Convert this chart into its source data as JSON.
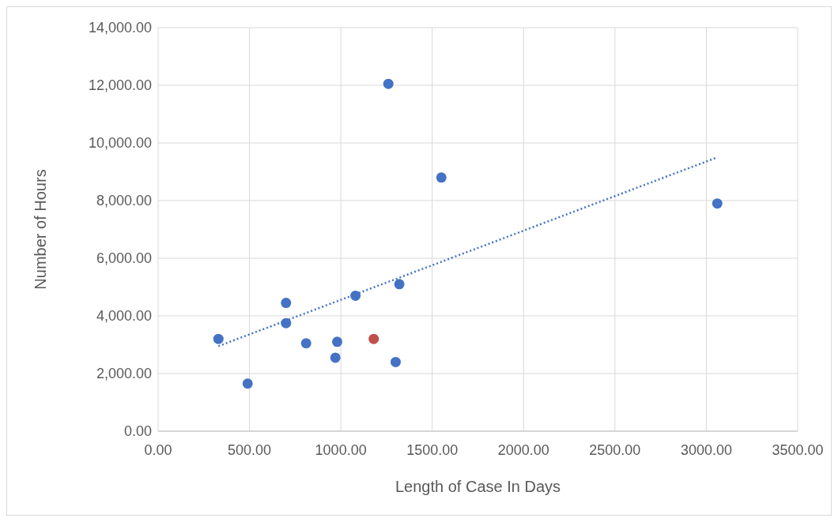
{
  "chart_data": {
    "type": "scatter",
    "xlabel": "Length of Case In Days",
    "ylabel": "Number of Hours",
    "xlim": [
      0,
      3500
    ],
    "ylim": [
      0,
      14000
    ],
    "xticks": [
      {
        "value": 0,
        "label": "0.00"
      },
      {
        "value": 500,
        "label": "500.00"
      },
      {
        "value": 1000,
        "label": "1000.00"
      },
      {
        "value": 1500,
        "label": "1500.00"
      },
      {
        "value": 2000,
        "label": "2000.00"
      },
      {
        "value": 2500,
        "label": "2500.00"
      },
      {
        "value": 3000,
        "label": "3000.00"
      },
      {
        "value": 3500,
        "label": "3500.00"
      }
    ],
    "yticks": [
      {
        "value": 0,
        "label": "0.00"
      },
      {
        "value": 2000,
        "label": "2,000.00"
      },
      {
        "value": 4000,
        "label": "4,000.00"
      },
      {
        "value": 6000,
        "label": "6,000.00"
      },
      {
        "value": 8000,
        "label": "8,000.00"
      },
      {
        "value": 10000,
        "label": "10,000.00"
      },
      {
        "value": 12000,
        "label": "12,000.00"
      },
      {
        "value": 14000,
        "label": "14,000.00"
      }
    ],
    "grid": true,
    "series": [
      {
        "color": "#4472c4",
        "marker": "circle",
        "x": [
          330,
          490,
          700,
          700,
          810,
          980,
          970,
          1080,
          1260,
          1320,
          1300,
          1550,
          3060
        ],
        "values": [
          3200,
          1650,
          4450,
          3750,
          3050,
          3100,
          2550,
          4700,
          12050,
          5100,
          2400,
          8800,
          7900
        ]
      },
      {
        "color": "#c0504d",
        "marker": "circle",
        "x": [
          1180
        ],
        "values": [
          3200
        ]
      },
      {
        "type": "line",
        "line_style": "dotted",
        "marker": "none",
        "color": "#4472c4",
        "x": [
          330,
          3060
        ],
        "values": [
          2950,
          9500
        ]
      }
    ]
  }
}
